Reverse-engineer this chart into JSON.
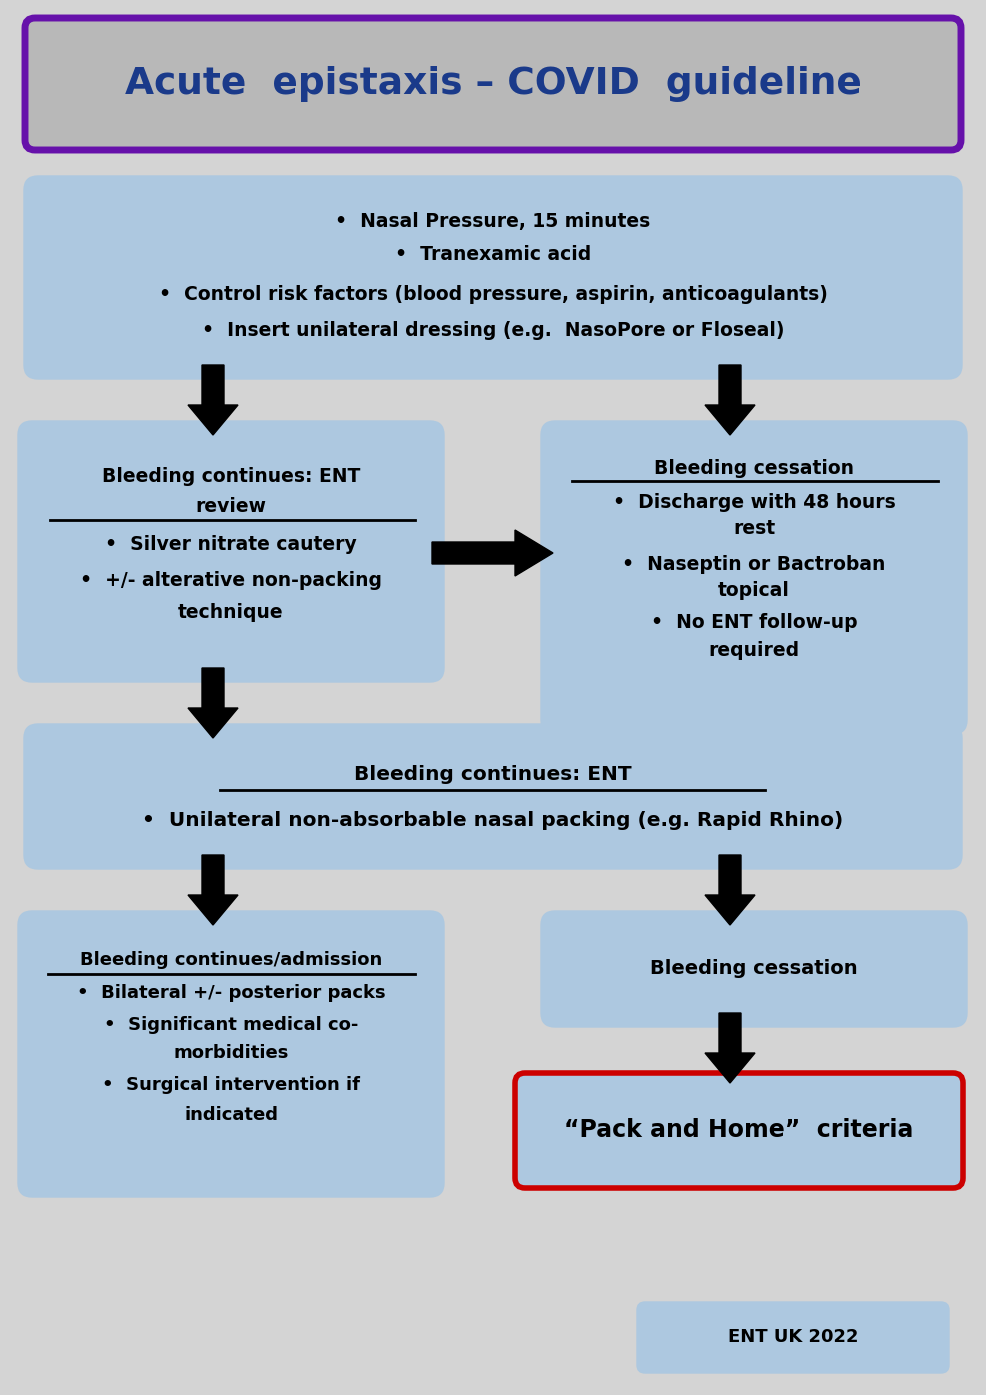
{
  "title": "Acute  epistaxis – COVID  guideline",
  "title_color": "#1a3a8a",
  "title_bg": "#b8b8b8",
  "title_border": "#6611aa",
  "background": "#d4d4d4",
  "box_bg": "#adc8e0",
  "text_color": "#000000",
  "box1_lines": [
    "•  Nasal Pressure, 15 minutes",
    "•  Tranexamic acid",
    "•  Control risk factors (blood pressure, aspirin, anticoagulants)",
    "•  Insert unilateral dressing (e.g.  NasoPore or Floseal)"
  ],
  "box2_lines": [
    "Bleeding continues: ENT",
    "review",
    "•  Silver nitrate cautery",
    "•  +/- alterative non-packing",
    "technique"
  ],
  "box3_lines": [
    "Bleeding cessation",
    "•  Discharge with 48 hours",
    "rest",
    "•  Naseptin or Bactroban",
    "topical",
    "•  No ENT follow-up",
    "required"
  ],
  "box4_line1": "Bleeding continues: ENT",
  "box4_line2": "•  Unilateral non-absorbable nasal packing (e.g. Rapid Rhino)",
  "box5_lines": [
    "Bleeding continues/admission",
    "•  Bilateral +/- posterior packs",
    "•  Significant medical co-",
    "morbidities",
    "•  Surgical intervention if",
    "indicated"
  ],
  "box6_text": "Bleeding cessation",
  "box7_text": "“Pack and Home”  criteria",
  "box7_bg": "#adc8e0",
  "box7_border": "#cc0000",
  "footer_text": "ENT UK 2022",
  "footer_bg": "#adc8e0"
}
